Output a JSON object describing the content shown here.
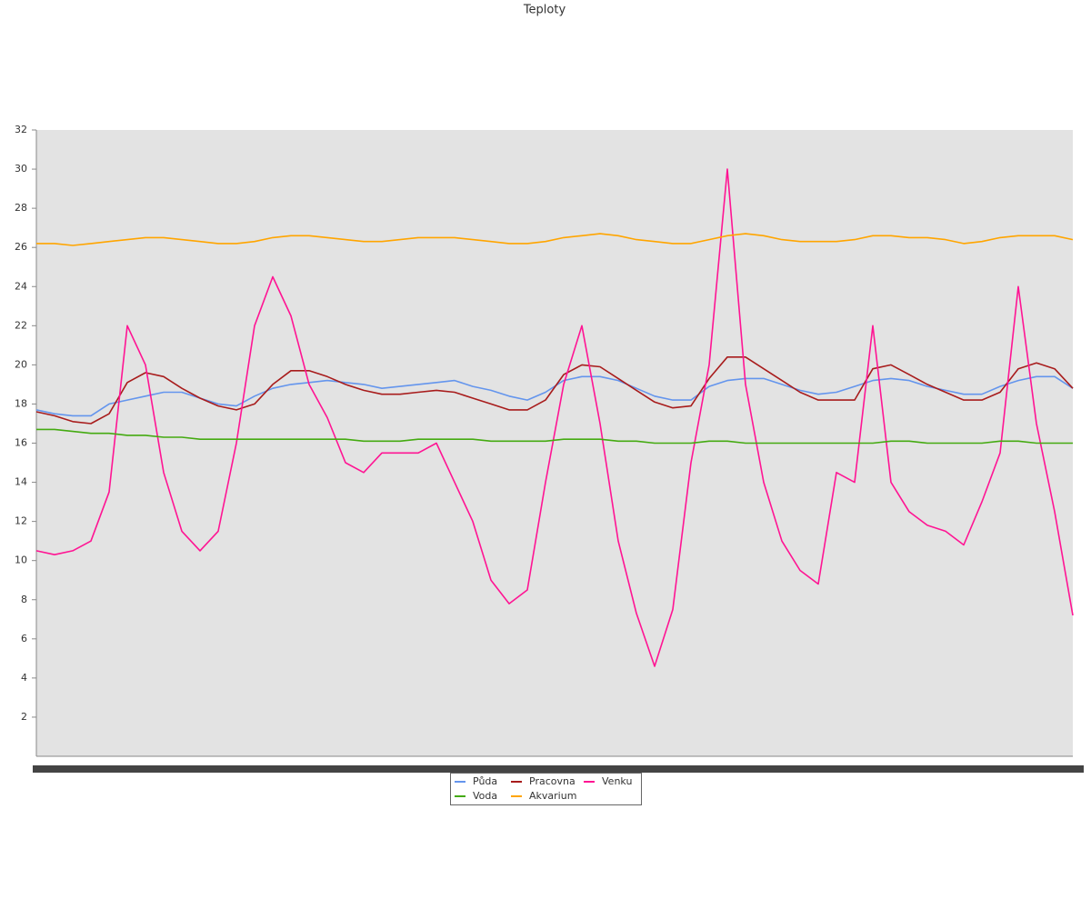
{
  "chart_data": {
    "type": "line",
    "title": "Teploty",
    "categories": [
      null,
      null,
      null,
      null,
      null,
      null,
      null,
      null,
      null,
      null,
      null,
      null,
      null,
      null,
      null,
      null,
      null,
      null,
      null,
      null,
      null,
      null,
      null,
      null,
      null,
      null,
      null,
      null,
      null,
      null,
      null,
      null,
      null,
      null,
      null,
      null,
      null,
      null,
      null,
      null,
      null,
      null,
      null,
      null,
      null,
      null,
      null,
      null,
      null,
      null,
      null,
      null,
      null,
      null,
      null,
      null,
      null,
      null
    ],
    "ylim": [
      0,
      32
    ],
    "yticks": [
      2,
      4,
      6,
      8,
      10,
      12,
      14,
      16,
      18,
      20,
      22,
      24,
      26,
      28,
      30,
      32
    ],
    "series": [
      {
        "name": "Půda",
        "color": "#6495ed",
        "values": [
          17.7,
          17.5,
          17.4,
          17.4,
          18.0,
          18.2,
          18.4,
          18.6,
          18.6,
          18.3,
          18.0,
          17.9,
          18.4,
          18.8,
          19.0,
          19.1,
          19.2,
          19.1,
          19.0,
          18.8,
          18.9,
          19.0,
          19.1,
          19.2,
          18.9,
          18.7,
          18.4,
          18.2,
          18.6,
          19.2,
          19.4,
          19.4,
          19.2,
          18.8,
          18.4,
          18.2,
          18.2,
          18.9,
          19.2,
          19.3,
          19.3,
          19.0,
          18.7,
          18.5,
          18.6,
          18.9,
          19.2,
          19.3,
          19.2,
          18.9,
          18.7,
          18.5,
          18.5,
          18.9,
          19.2,
          19.4,
          19.4,
          18.8
        ]
      },
      {
        "name": "Pracovna",
        "color": "#a81c1c",
        "values": [
          17.6,
          17.4,
          17.1,
          17.0,
          17.5,
          19.1,
          19.6,
          19.4,
          18.8,
          18.3,
          17.9,
          17.7,
          18.0,
          19.0,
          19.7,
          19.7,
          19.4,
          19.0,
          18.7,
          18.5,
          18.5,
          18.6,
          18.7,
          18.6,
          18.3,
          18.0,
          17.7,
          17.7,
          18.2,
          19.5,
          20.0,
          19.9,
          19.3,
          18.7,
          18.1,
          17.8,
          17.9,
          19.3,
          20.4,
          20.4,
          19.8,
          19.2,
          18.6,
          18.2,
          18.2,
          18.2,
          19.8,
          20.0,
          19.5,
          19.0,
          18.6,
          18.2,
          18.2,
          18.6,
          19.8,
          20.1,
          19.8,
          18.8
        ]
      },
      {
        "name": "Venku",
        "color": "#ff1493",
        "values": [
          10.5,
          10.3,
          10.5,
          11.0,
          13.5,
          22,
          20,
          14.5,
          11.5,
          10.5,
          11.5,
          16,
          22,
          24.5,
          22.5,
          19,
          17.3,
          15,
          14.5,
          15.5,
          15.5,
          15.5,
          16,
          14,
          12,
          9,
          7.8,
          8.5,
          14,
          19,
          22,
          17,
          11,
          7.3,
          4.6,
          7.5,
          15,
          20,
          30,
          19,
          14,
          11,
          9.5,
          8.8,
          14.5,
          14,
          22,
          14,
          12.5,
          11.8,
          11.5,
          10.8,
          13,
          15.5,
          24,
          17,
          12.5,
          7.2
        ]
      },
      {
        "name": "Voda",
        "color": "#44aa11",
        "values": [
          16.7,
          16.7,
          16.6,
          16.5,
          16.5,
          16.4,
          16.4,
          16.3,
          16.3,
          16.2,
          16.2,
          16.2,
          16.2,
          16.2,
          16.2,
          16.2,
          16.2,
          16.2,
          16.1,
          16.1,
          16.1,
          16.2,
          16.2,
          16.2,
          16.2,
          16.1,
          16.1,
          16.1,
          16.1,
          16.2,
          16.2,
          16.2,
          16.1,
          16.1,
          16.0,
          16.0,
          16.0,
          16.1,
          16.1,
          16.0,
          16.0,
          16.0,
          16.0,
          16.0,
          16.0,
          16.0,
          16.0,
          16.1,
          16.1,
          16.0,
          16.0,
          16.0,
          16.0,
          16.1,
          16.1,
          16.0,
          16.0,
          16.0
        ]
      },
      {
        "name": "Akvarium",
        "color": "#ffa500",
        "values": [
          26.2,
          26.2,
          26.1,
          26.2,
          26.3,
          26.4,
          26.5,
          26.5,
          26.4,
          26.3,
          26.2,
          26.2,
          26.3,
          26.5,
          26.6,
          26.6,
          26.5,
          26.4,
          26.3,
          26.3,
          26.4,
          26.5,
          26.5,
          26.5,
          26.4,
          26.3,
          26.2,
          26.2,
          26.3,
          26.5,
          26.6,
          26.7,
          26.6,
          26.4,
          26.3,
          26.2,
          26.2,
          26.4,
          26.6,
          26.7,
          26.6,
          26.4,
          26.3,
          26.3,
          26.3,
          26.4,
          26.6,
          26.6,
          26.5,
          26.5,
          26.4,
          26.2,
          26.3,
          26.5,
          26.6,
          26.6,
          26.6,
          26.4
        ]
      }
    ],
    "grid": false,
    "legend": "bottom"
  }
}
